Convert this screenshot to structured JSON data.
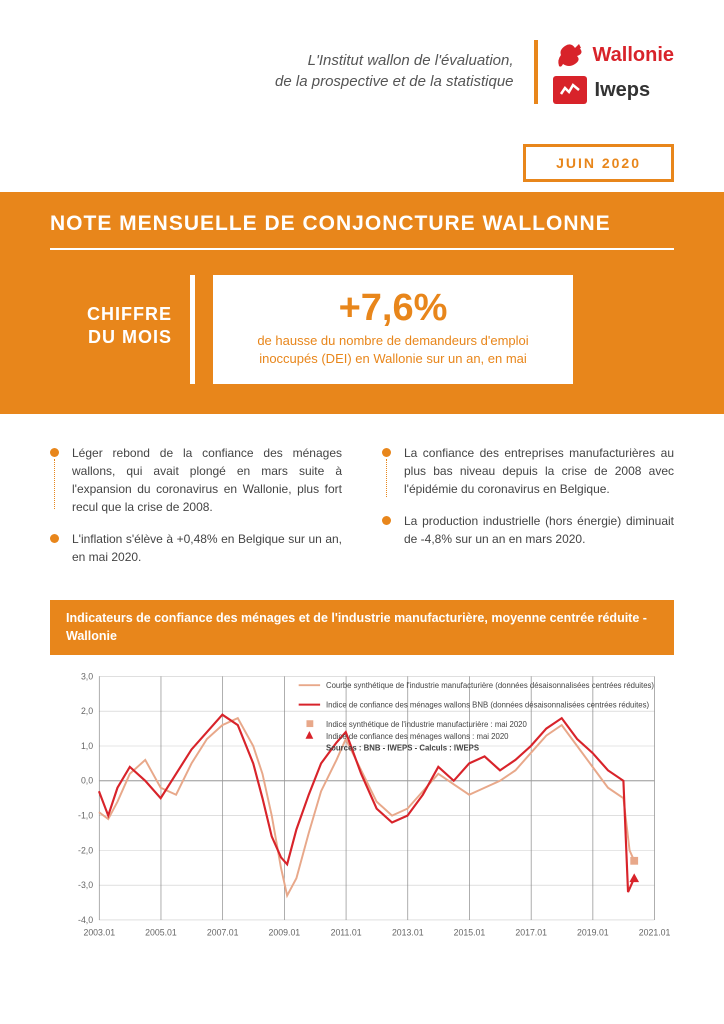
{
  "header": {
    "institute_line1": "L'Institut wallon de l'évaluation,",
    "institute_line2": "de la prospective et de la statistique",
    "brand_region": "Wallonie",
    "brand_org": "Iweps"
  },
  "date_tab": "JUIN 2020",
  "main_title": "NOTE MENSUELLE DE CONJONCTURE WALLONNE",
  "chiffre": {
    "label_line1": "CHIFFRE",
    "label_line2": "DU MOIS",
    "value": "+7,6%",
    "desc": "de hausse du nombre de demandeurs d'emploi inoccupés (DEI) en Wallonie sur un an, en mai"
  },
  "bullets": {
    "left": [
      "Léger rebond de la confiance des ménages wallons, qui avait plongé en mars suite à l'expansion du coronavirus en Wallonie, plus fort recul que la crise de 2008.",
      "L'inflation s'élève à +0,48% en Belgique sur un an, en mai 2020."
    ],
    "right": [
      "La confiance des entreprises manufacturières au plus bas niveau depuis la crise de 2008 avec l'épidémie du coronavirus en Belgique.",
      "La production industrielle (hors énergie) diminuait de -4,8% sur un an en mars 2020."
    ]
  },
  "chart": {
    "title": "Indicateurs de confiance des ménages et de l'industrie manufacturière, moyenne centrée réduite - Wallonie",
    "legend": [
      "Courbe synthétique de l'industrie manufacturière (données désaisonnalisées centrées réduites)",
      "Indice de confiance des ménages wallons BNB (données désaisonnalisées centrées réduites)",
      "Indice synthétique de l'industrie manufacturière : mai 2020",
      "Indice de confiance des ménages wallons : mai 2020",
      "Sources : BNB - IWEPS - Calculs : IWEPS"
    ],
    "colors": {
      "series_menages": "#d8232a",
      "series_industrie": "#e8a88a",
      "grid": "#cccccc",
      "axis_text": "#666666",
      "background": "#ffffff"
    },
    "ylim": [
      -4.0,
      3.0
    ],
    "ytick_step": 1.0,
    "x_labels": [
      "2003.01",
      "2005.01",
      "2007.01",
      "2009.01",
      "2011.01",
      "2013.01",
      "2015.01",
      "2017.01",
      "2019.01",
      "2021.01"
    ],
    "x_range": [
      2003,
      2021
    ],
    "series_industrie": [
      [
        2003.0,
        -0.9
      ],
      [
        2003.3,
        -1.1
      ],
      [
        2003.6,
        -0.6
      ],
      [
        2004.0,
        0.2
      ],
      [
        2004.5,
        0.6
      ],
      [
        2005.0,
        -0.2
      ],
      [
        2005.5,
        -0.4
      ],
      [
        2006.0,
        0.5
      ],
      [
        2006.5,
        1.2
      ],
      [
        2007.0,
        1.6
      ],
      [
        2007.5,
        1.8
      ],
      [
        2008.0,
        1.0
      ],
      [
        2008.3,
        0.2
      ],
      [
        2008.6,
        -1.0
      ],
      [
        2008.9,
        -2.5
      ],
      [
        2009.1,
        -3.3
      ],
      [
        2009.4,
        -2.8
      ],
      [
        2009.8,
        -1.5
      ],
      [
        2010.2,
        -0.3
      ],
      [
        2010.7,
        0.6
      ],
      [
        2011.0,
        1.2
      ],
      [
        2011.5,
        0.3
      ],
      [
        2012.0,
        -0.6
      ],
      [
        2012.5,
        -1.0
      ],
      [
        2013.0,
        -0.8
      ],
      [
        2013.5,
        -0.3
      ],
      [
        2014.0,
        0.2
      ],
      [
        2014.5,
        -0.1
      ],
      [
        2015.0,
        -0.4
      ],
      [
        2015.5,
        -0.2
      ],
      [
        2016.0,
        0.0
      ],
      [
        2016.5,
        0.3
      ],
      [
        2017.0,
        0.8
      ],
      [
        2017.5,
        1.3
      ],
      [
        2018.0,
        1.6
      ],
      [
        2018.5,
        1.0
      ],
      [
        2019.0,
        0.4
      ],
      [
        2019.5,
        -0.2
      ],
      [
        2020.0,
        -0.5
      ],
      [
        2020.2,
        -2.0
      ],
      [
        2020.35,
        -2.3
      ]
    ],
    "series_menages": [
      [
        2003.0,
        -0.3
      ],
      [
        2003.3,
        -1.0
      ],
      [
        2003.6,
        -0.2
      ],
      [
        2004.0,
        0.4
      ],
      [
        2004.5,
        0.0
      ],
      [
        2005.0,
        -0.5
      ],
      [
        2005.5,
        0.2
      ],
      [
        2006.0,
        0.9
      ],
      [
        2006.5,
        1.4
      ],
      [
        2007.0,
        1.9
      ],
      [
        2007.5,
        1.6
      ],
      [
        2008.0,
        0.5
      ],
      [
        2008.3,
        -0.5
      ],
      [
        2008.6,
        -1.6
      ],
      [
        2008.9,
        -2.2
      ],
      [
        2009.1,
        -2.4
      ],
      [
        2009.4,
        -1.4
      ],
      [
        2009.8,
        -0.4
      ],
      [
        2010.2,
        0.5
      ],
      [
        2010.7,
        1.1
      ],
      [
        2011.0,
        1.4
      ],
      [
        2011.5,
        0.2
      ],
      [
        2012.0,
        -0.8
      ],
      [
        2012.5,
        -1.2
      ],
      [
        2013.0,
        -1.0
      ],
      [
        2013.5,
        -0.4
      ],
      [
        2014.0,
        0.4
      ],
      [
        2014.5,
        0.0
      ],
      [
        2015.0,
        0.5
      ],
      [
        2015.5,
        0.7
      ],
      [
        2016.0,
        0.3
      ],
      [
        2016.5,
        0.6
      ],
      [
        2017.0,
        1.0
      ],
      [
        2017.5,
        1.5
      ],
      [
        2018.0,
        1.8
      ],
      [
        2018.5,
        1.2
      ],
      [
        2019.0,
        0.8
      ],
      [
        2019.5,
        0.3
      ],
      [
        2020.0,
        0.0
      ],
      [
        2020.15,
        -3.2
      ],
      [
        2020.35,
        -2.8
      ]
    ],
    "point_industrie_may2020": [
      2020.35,
      -2.3
    ],
    "point_menages_may2020": [
      2020.35,
      -2.8
    ]
  },
  "colors": {
    "orange": "#e8861b",
    "red": "#d8232a",
    "white": "#ffffff",
    "text": "#444444"
  }
}
